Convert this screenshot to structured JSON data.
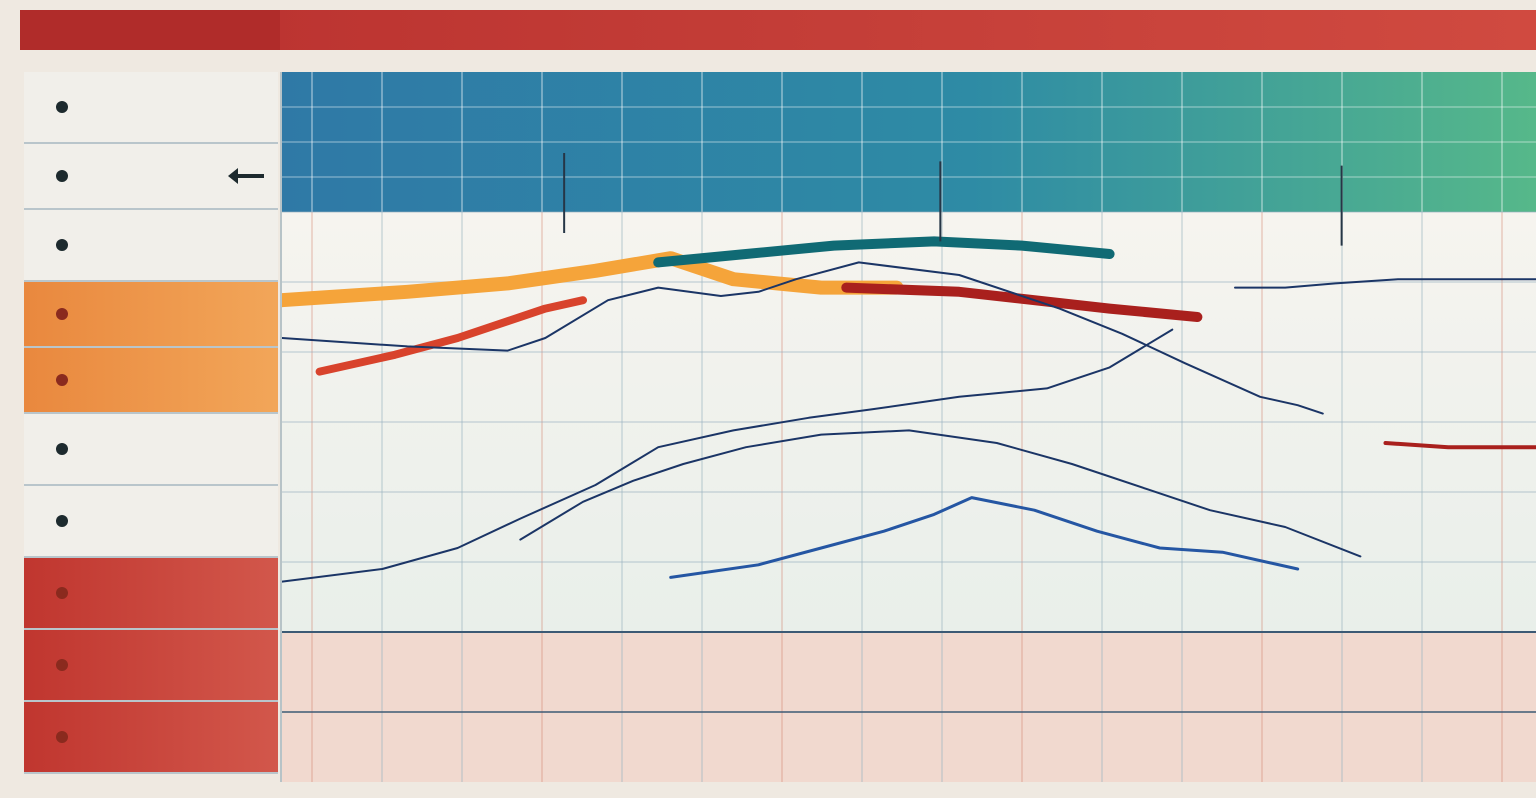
{
  "header": {
    "title": ""
  },
  "sidebar": {
    "items": [
      {
        "label": "",
        "style": "plain"
      },
      {
        "label": "",
        "style": "plain",
        "arrow": true
      },
      {
        "label": "",
        "style": "plain"
      },
      {
        "label": "",
        "style": "orange"
      },
      {
        "label": "",
        "style": "orange"
      },
      {
        "label": "",
        "style": "plain"
      },
      {
        "label": "",
        "style": "plain"
      },
      {
        "label": "",
        "style": "red"
      },
      {
        "label": "",
        "style": "red"
      },
      {
        "label": "",
        "style": "red"
      }
    ]
  },
  "colors": {
    "header_band_left": "#2f79a6",
    "header_band_right": "#4aae87",
    "plot_bg": "#f2f2ee",
    "bottom_band": "#f1d9cf",
    "orange": "#f5a43a",
    "dark_red": "#a9201d",
    "red": "#d8432c",
    "teal": "#106a74",
    "navy": "#1b3566",
    "blue": "#2556a3"
  },
  "chart_data": {
    "type": "line",
    "title": "",
    "xlabel": "",
    "ylabel": "",
    "grid": true,
    "xlim": [
      0,
      100
    ],
    "ylim": [
      0,
      100
    ],
    "series": [
      {
        "key": "orange",
        "color": "#f5a43a",
        "width": 14,
        "points": [
          [
            0,
            79
          ],
          [
            10,
            81
          ],
          [
            18,
            83
          ],
          [
            25,
            86
          ],
          [
            31,
            89
          ],
          [
            36,
            84
          ],
          [
            43,
            82
          ],
          [
            49,
            82
          ]
        ]
      },
      {
        "key": "dark_red",
        "color": "#a9201d",
        "width": 10,
        "points": [
          [
            45,
            82
          ],
          [
            54,
            81
          ],
          [
            60,
            79
          ],
          [
            66,
            77
          ],
          [
            73,
            75
          ]
        ]
      },
      {
        "key": "teal",
        "color": "#106a74",
        "width": 10,
        "points": [
          [
            30,
            88
          ],
          [
            37,
            90
          ],
          [
            44,
            92
          ],
          [
            52,
            93
          ],
          [
            59,
            92
          ],
          [
            66,
            90
          ]
        ]
      },
      {
        "key": "red",
        "color": "#d8432c",
        "width": 8,
        "points": [
          [
            3,
            62
          ],
          [
            9,
            66
          ],
          [
            14,
            70
          ],
          [
            18,
            74
          ],
          [
            21,
            77
          ],
          [
            24,
            79
          ]
        ]
      },
      {
        "key": "navy_main",
        "color": "#1b3566",
        "width": 2,
        "points": [
          [
            0,
            12
          ],
          [
            8,
            15
          ],
          [
            14,
            20
          ],
          [
            19,
            27
          ],
          [
            25,
            35
          ],
          [
            30,
            44
          ],
          [
            36,
            48
          ],
          [
            42,
            51
          ],
          [
            47,
            53
          ],
          [
            54,
            56
          ],
          [
            61,
            58
          ],
          [
            66,
            63
          ],
          [
            71,
            72
          ]
        ]
      },
      {
        "key": "navy_upper",
        "color": "#1b3566",
        "width": 2,
        "points": [
          [
            0,
            70
          ],
          [
            10,
            68
          ],
          [
            18,
            67
          ],
          [
            21,
            70
          ],
          [
            26,
            79
          ],
          [
            30,
            82
          ],
          [
            35,
            80
          ],
          [
            38,
            81
          ],
          [
            41,
            84
          ],
          [
            46,
            88
          ],
          [
            54,
            85
          ],
          [
            62,
            77
          ],
          [
            67,
            71
          ],
          [
            72,
            64
          ],
          [
            78,
            56
          ],
          [
            81,
            54
          ],
          [
            83,
            52
          ]
        ]
      },
      {
        "key": "blue_lower",
        "color": "#2556a3",
        "width": 3,
        "points": [
          [
            31,
            13
          ],
          [
            38,
            16
          ],
          [
            43,
            20
          ],
          [
            48,
            24
          ],
          [
            52,
            28
          ],
          [
            55,
            32
          ],
          [
            60,
            29
          ],
          [
            65,
            24
          ],
          [
            70,
            20
          ],
          [
            75,
            19
          ],
          [
            81,
            15
          ]
        ]
      },
      {
        "key": "navy_mid",
        "color": "#1b3566",
        "width": 2,
        "points": [
          [
            19,
            22
          ],
          [
            24,
            31
          ],
          [
            28,
            36
          ],
          [
            32,
            40
          ],
          [
            37,
            44
          ],
          [
            43,
            47
          ],
          [
            50,
            48
          ],
          [
            57,
            45
          ],
          [
            63,
            40
          ],
          [
            69,
            34
          ],
          [
            74,
            29
          ],
          [
            80,
            25
          ],
          [
            86,
            18
          ]
        ]
      },
      {
        "key": "blue_right",
        "color": "#1b3566",
        "width": 2,
        "points": [
          [
            76,
            82
          ],
          [
            80,
            82
          ],
          [
            84,
            83
          ],
          [
            89,
            84
          ],
          [
            93,
            84
          ],
          [
            100,
            84
          ]
        ]
      },
      {
        "key": "dark_red_right",
        "color": "#a9201d",
        "width": 4,
        "points": [
          [
            88,
            45
          ],
          [
            93,
            44
          ],
          [
            100,
            44
          ]
        ]
      }
    ],
    "markers": [
      {
        "x": 22.5,
        "y": 95
      },
      {
        "x": 52.5,
        "y": 93
      },
      {
        "x": 84.5,
        "y": 92
      }
    ]
  }
}
